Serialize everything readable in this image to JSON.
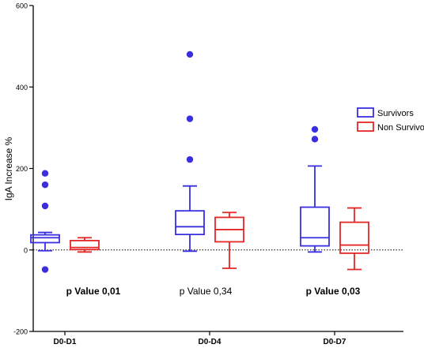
{
  "chart_data": {
    "type": "box",
    "title": "",
    "xlabel": "",
    "ylabel": "IgA Increase %",
    "ylim": [
      -200,
      600
    ],
    "yticks": [
      -200,
      0,
      200,
      400,
      600
    ],
    "zero_line": "dotted",
    "categories": [
      "D0-D1",
      "D0-D4",
      "D0-D7"
    ],
    "legend": {
      "position": "right",
      "entries": [
        "Survivors",
        "Non Survivors"
      ]
    },
    "colors": {
      "Survivors": "#3a2fe0",
      "Non Survivors": "#e32626",
      "axis": "#000000"
    },
    "series": [
      {
        "name": "Survivors",
        "boxes": [
          {
            "whisker_low": -2,
            "q1": 18,
            "median": 30,
            "q3": 37,
            "whisker_high": 43,
            "outliers": [
              188,
              160,
              108,
              -48
            ]
          },
          {
            "whisker_low": -3,
            "q1": 38,
            "median": 57,
            "q3": 96,
            "whisker_high": 157,
            "outliers": [
              480,
              322,
              222
            ]
          },
          {
            "whisker_low": -5,
            "q1": 10,
            "median": 30,
            "q3": 105,
            "whisker_high": 206,
            "outliers": [
              296,
              272
            ]
          }
        ]
      },
      {
        "name": "Non Survivors",
        "boxes": [
          {
            "whisker_low": -5,
            "q1": 1,
            "median": 6,
            "q3": 23,
            "whisker_high": 30,
            "outliers": []
          },
          {
            "whisker_low": -45,
            "q1": 20,
            "median": 50,
            "q3": 80,
            "whisker_high": 92,
            "outliers": []
          },
          {
            "whisker_low": -48,
            "q1": -8,
            "median": 12,
            "q3": 68,
            "whisker_high": 103,
            "outliers": []
          }
        ]
      }
    ],
    "annotations": [
      {
        "text": "p Value 0,01",
        "bold": true
      },
      {
        "text": "p Value 0,34",
        "bold": false
      },
      {
        "text": "p Value 0,03",
        "bold": true
      }
    ]
  }
}
